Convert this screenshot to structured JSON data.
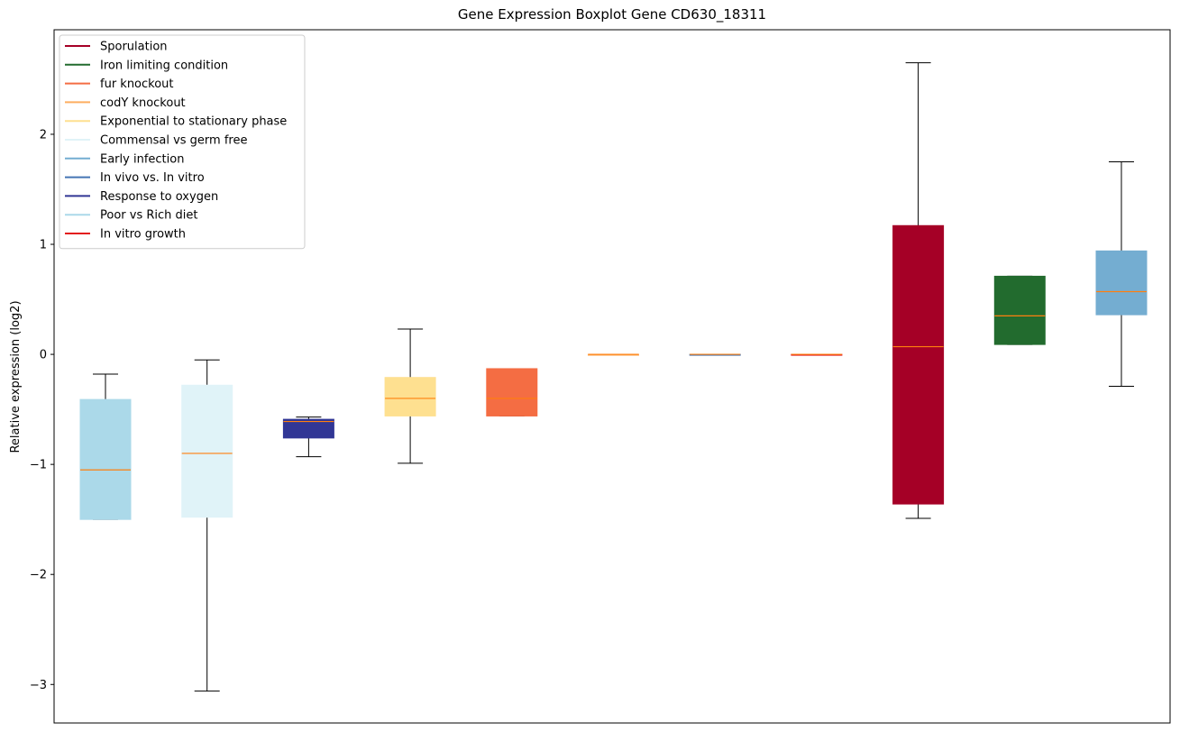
{
  "chart_data": {
    "type": "boxplot",
    "title": "Gene Expression Boxplot Gene CD630_18311",
    "xlabel": "",
    "ylabel": "Relative expression (log2)",
    "ylim": [
      -3.35,
      2.95
    ],
    "yticks": [
      -3,
      -2,
      -1,
      0,
      1,
      2
    ],
    "ytick_labels": [
      "−3",
      "−2",
      "−1",
      "0",
      "1",
      "2"
    ],
    "grid": false,
    "legend_position": "top-left",
    "legend": [
      {
        "label": "Sporulation",
        "color": "#a50026"
      },
      {
        "label": "Iron limiting condition",
        "color": "#226b2e"
      },
      {
        "label": "fur knockout",
        "color": "#f46d43"
      },
      {
        "label": "codY knockout",
        "color": "#fdae61"
      },
      {
        "label": "Exponential to stationary phase",
        "color": "#fee090"
      },
      {
        "label": "Commensal vs germ free",
        "color": "#e0f3f8"
      },
      {
        "label": "Early infection",
        "color": "#74add1"
      },
      {
        "label": "In vivo vs. In vitro",
        "color": "#4575b4"
      },
      {
        "label": "Response to oxygen",
        "color": "#313695"
      },
      {
        "label": "Poor vs Rich diet",
        "color": "#abd9e9"
      },
      {
        "label": "In vitro growth",
        "color": "#e31a1c"
      }
    ],
    "boxes": [
      {
        "color": "#abd9e9",
        "whislo": -1.5,
        "q1": -1.5,
        "med": -1.05,
        "q3": -0.41,
        "whishi": -0.18
      },
      {
        "color": "#e0f3f8",
        "whislo": -3.06,
        "q1": -1.48,
        "med": -0.9,
        "q3": -0.28,
        "whishi": -0.05
      },
      {
        "color": "#313695",
        "whislo": -0.93,
        "q1": -0.76,
        "med": -0.61,
        "q3": -0.59,
        "whishi": -0.57
      },
      {
        "color": "#fee090",
        "whislo": -0.99,
        "q1": -0.56,
        "med": -0.4,
        "q3": -0.21,
        "whishi": 0.23
      },
      {
        "color": "#f46d43",
        "whislo": -0.56,
        "q1": -0.56,
        "med": -0.4,
        "q3": -0.13,
        "whishi": -0.13
      },
      {
        "color": "#fdae61",
        "whislo": 0.0,
        "q1": 0.0,
        "med": 0.0,
        "q3": 0.0,
        "whishi": 0.0
      },
      {
        "color": "#4575b4",
        "whislo": 0.0,
        "q1": 0.0,
        "med": 0.0,
        "q3": 0.0,
        "whishi": 0.0
      },
      {
        "color": "#e31a1c",
        "whislo": 0.0,
        "q1": 0.0,
        "med": 0.0,
        "q3": 0.0,
        "whishi": 0.0
      },
      {
        "color": "#a50026",
        "whislo": -1.49,
        "q1": -1.36,
        "med": 0.07,
        "q3": 1.17,
        "whishi": 2.65
      },
      {
        "color": "#226b2e",
        "whislo": 0.09,
        "q1": 0.09,
        "med": 0.35,
        "q3": 0.71,
        "whishi": 0.71
      },
      {
        "color": "#74add1",
        "whislo": -0.29,
        "q1": 0.36,
        "med": 0.57,
        "q3": 0.94,
        "whishi": 1.75
      }
    ],
    "median_color": "#ff7f0e",
    "whisker_color": "#000000"
  }
}
